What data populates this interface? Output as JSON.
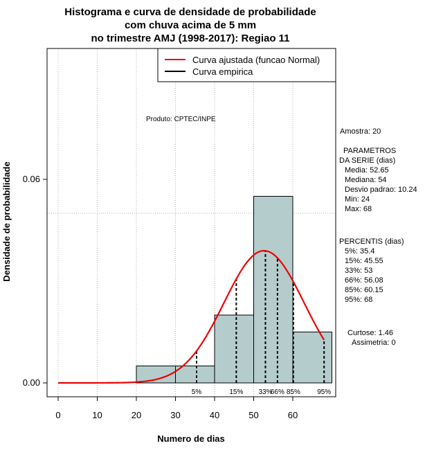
{
  "chart_data": {
    "type": "histogram",
    "title": [
      "Histograma e curva de densidade de probabilidade",
      "com chuva acima de 5 mm",
      "no trimestre AMJ (1998-2017): Regiao 11"
    ],
    "xlabel": "Numero de dias",
    "ylabel": "Densidade de probabilidade",
    "xlim": [
      -2,
      70
    ],
    "ylim": [
      -0.003,
      0.1
    ],
    "x_ticks": [
      0,
      10,
      20,
      30,
      40,
      50,
      60
    ],
    "y_ticks": [
      0.0,
      0.06
    ],
    "y_tick_labels": [
      "0.00",
      "0.06"
    ],
    "bins": [
      {
        "from": 20,
        "to": 30,
        "density": 0.005
      },
      {
        "from": 30,
        "to": 40,
        "density": 0.005
      },
      {
        "from": 40,
        "to": 50,
        "density": 0.02
      },
      {
        "from": 50,
        "to": 60,
        "density": 0.055
      },
      {
        "from": 60,
        "to": 70,
        "density": 0.015
      }
    ],
    "bar_color": "#b5cccc",
    "normal_curve": {
      "mean": 52.65,
      "sd": 10.24,
      "x_from": 0,
      "x_to": 68,
      "color": "#ee0000"
    },
    "horizontal_reference_y": 0.05,
    "percentiles": [
      {
        "label": "5%",
        "x": 35.4
      },
      {
        "label": "15%",
        "x": 45.55
      },
      {
        "label": "33%",
        "x": 53
      },
      {
        "label": "66%",
        "x": 56.08
      },
      {
        "label": "85%",
        "x": 60.15
      },
      {
        "label": "95%",
        "x": 68
      }
    ],
    "legend": [
      {
        "label": "Curva ajustada (funcao Normal)",
        "color": "#ee0000"
      },
      {
        "label": "Curva empirica",
        "color": "#000000"
      }
    ],
    "legend_position": "top-right",
    "annotation": "Produto: CPTEC/INPE"
  },
  "side_panel": {
    "amostra": "Amostra: 20",
    "param_title_1": "PARAMETROS",
    "param_title_2": "DA SERIE (dias)",
    "media": "Media: 52.65",
    "mediana": "Mediana: 54",
    "desvio": "Desvio padrao: 10.24",
    "min": "Min: 24",
    "max": "Max: 68",
    "perc_title": "PERCENTIS (dias)",
    "p5": "5%: 35.4",
    "p15": "15%: 45.55",
    "p33": "33%: 53",
    "p66": "66%: 56.08",
    "p85": "85%: 60.15",
    "p95": "95%: 68",
    "curtose": "Curtose: 1.46",
    "assimetria": "Assimetria: 0"
  }
}
